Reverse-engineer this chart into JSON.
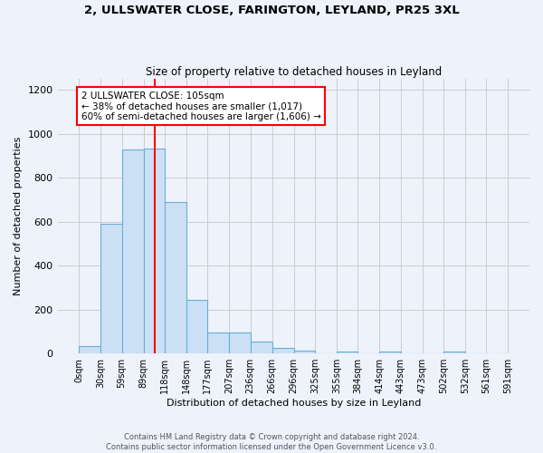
{
  "title": "2, ULLSWATER CLOSE, FARINGTON, LEYLAND, PR25 3XL",
  "subtitle": "Size of property relative to detached houses in Leyland",
  "xlabel": "Distribution of detached houses by size in Leyland",
  "ylabel": "Number of detached properties",
  "bin_edges": [
    0,
    30,
    59,
    89,
    118,
    148,
    177,
    207,
    236,
    266,
    296,
    325,
    355,
    384,
    414,
    443,
    473,
    502,
    532,
    561,
    591
  ],
  "bin_labels": [
    "0sqm",
    "30sqm",
    "59sqm",
    "89sqm",
    "118sqm",
    "148sqm",
    "177sqm",
    "207sqm",
    "236sqm",
    "266sqm",
    "296sqm",
    "325sqm",
    "355sqm",
    "384sqm",
    "414sqm",
    "443sqm",
    "473sqm",
    "502sqm",
    "532sqm",
    "561sqm",
    "591sqm"
  ],
  "counts": [
    35,
    590,
    930,
    935,
    690,
    245,
    95,
    95,
    55,
    25,
    15,
    0,
    10,
    0,
    10,
    0,
    0,
    10,
    0,
    0
  ],
  "bar_color": "#cce0f5",
  "bar_edgecolor": "#6aaed6",
  "grid_color": "#cccccc",
  "bg_color": "#eef2fb",
  "red_line_x": 105,
  "annotation_text": "2 ULLSWATER CLOSE: 105sqm\n← 38% of detached houses are smaller (1,017)\n60% of semi-detached houses are larger (1,606) →",
  "annotation_box_color": "white",
  "annotation_box_edgecolor": "red",
  "footer_line1": "Contains HM Land Registry data © Crown copyright and database right 2024.",
  "footer_line2": "Contains public sector information licensed under the Open Government Licence v3.0.",
  "ylim": [
    0,
    1250
  ],
  "yticks": [
    0,
    200,
    400,
    600,
    800,
    1000,
    1200
  ]
}
